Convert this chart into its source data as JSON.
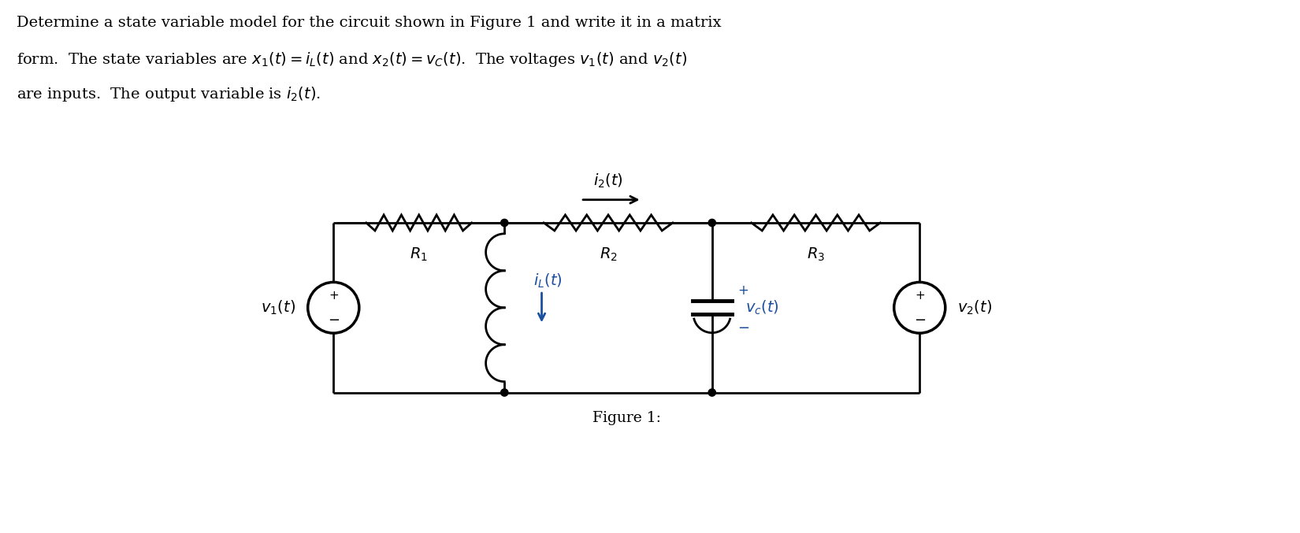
{
  "text_color": "#000000",
  "blue_color": "#1a4fa0",
  "fig_width": 16.5,
  "fig_height": 6.77,
  "bg_color": "#ffffff",
  "figure_label": "Figure 1:"
}
